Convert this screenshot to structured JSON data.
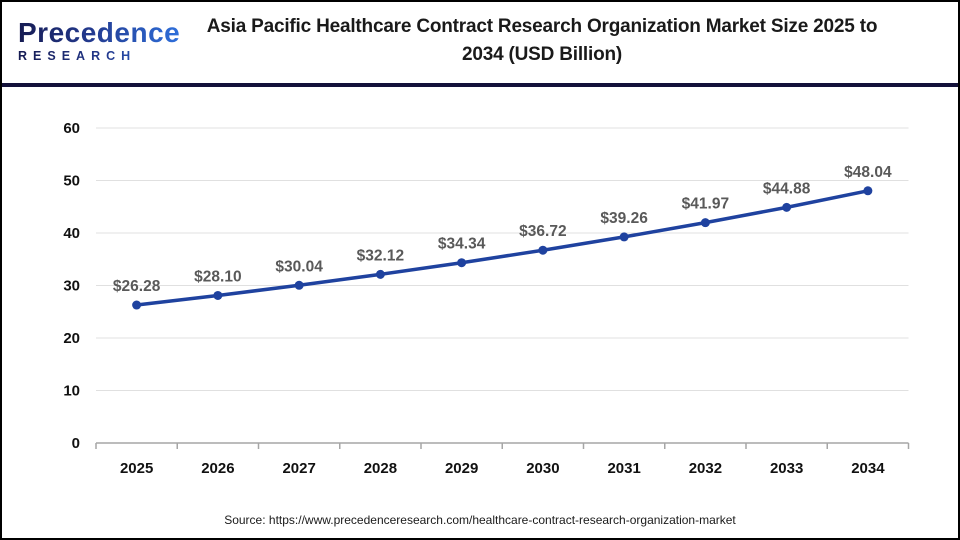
{
  "logo": {
    "brand": "Precedence",
    "sub": "RESEARCH"
  },
  "header": {
    "title_lines": [
      "Asia Pacific Healthcare Contract Research Organization Market Size 2025 to",
      "2034 (USD Billion)"
    ]
  },
  "chart_data": {
    "type": "line",
    "title": "Asia Pacific Healthcare Contract Research Organization Market Size 2025 to 2034 (USD Billion)",
    "categories": [
      "2025",
      "2026",
      "2027",
      "2028",
      "2029",
      "2030",
      "2031",
      "2032",
      "2033",
      "2034"
    ],
    "values": [
      26.28,
      28.1,
      30.04,
      32.12,
      34.34,
      36.72,
      39.26,
      41.97,
      44.88,
      48.04
    ],
    "point_labels": [
      "$26.28",
      "$28.10",
      "$30.04",
      "$32.12",
      "$34.34",
      "$36.72",
      "$39.26",
      "$41.97",
      "$44.88",
      "$48.04"
    ],
    "xlabel": "",
    "ylabel": "",
    "ylim": [
      0,
      60
    ],
    "yticks": [
      0,
      10,
      20,
      30,
      40,
      50,
      60
    ],
    "grid": true,
    "legend": "none",
    "colors": {
      "line": "#1f429f",
      "marker": "#1f429f",
      "value_label": "#595959",
      "axis_label": "#111111",
      "gridline": "#e0e0e0",
      "axis_line": "#a6a6a6"
    }
  },
  "footer": {
    "source": "Source: https://www.precedenceresearch.com/healthcare-contract-research-organization-market"
  },
  "theme": {
    "header_rule": "#13113a",
    "border": "#000000"
  }
}
